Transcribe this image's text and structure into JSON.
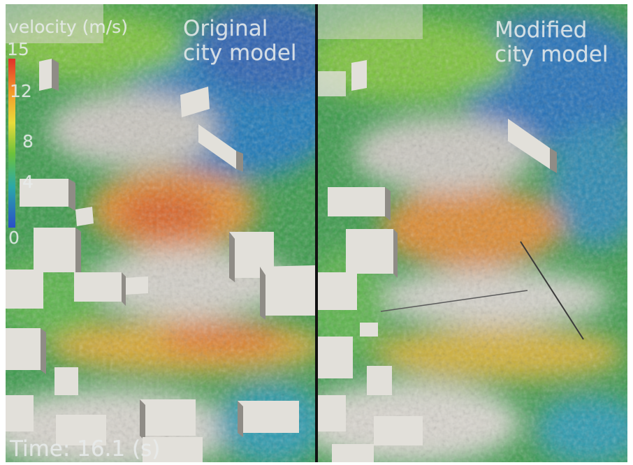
{
  "left_panel": {
    "caption": "Original\ncity model"
  },
  "right_panel": {
    "caption": "Modified\ncity model"
  },
  "legend": {
    "title": "velocity (m/s)",
    "ticks": [
      "15",
      "12",
      "8",
      "4",
      "0"
    ],
    "colors": [
      "#e0302a",
      "#f39a2a",
      "#e8dc3a",
      "#6cc23a",
      "#2aa8a8",
      "#2a4ec8"
    ]
  },
  "time_readout": "Time: 16.1 (s)",
  "colors": {
    "ground": "#d9d6cf",
    "building_top": "#e2e0da",
    "building_side": "#8f8c86",
    "divider": "#111111"
  }
}
